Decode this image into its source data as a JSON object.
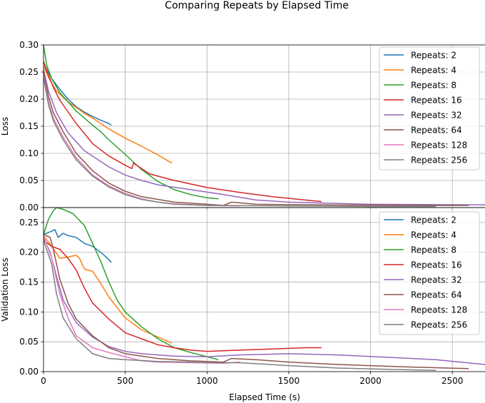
{
  "figure": {
    "title": "Comparing Repeats by Elapsed Time",
    "xlabel": "Elapsed Time (s)"
  },
  "colors": {
    "2": "#1f77b4",
    "4": "#ff7f0e",
    "8": "#2ca02c",
    "16": "#d62728",
    "32": "#9467bd",
    "64": "#8c564b",
    "128": "#e377c2",
    "256": "#7f7f7f"
  },
  "chart_data": [
    {
      "type": "line",
      "title": "",
      "xlabel": "",
      "ylabel": "Loss",
      "xlim": [
        0,
        2700
      ],
      "ylim": [
        0,
        0.3
      ],
      "xticks": [
        0,
        500,
        1000,
        1500,
        2000,
        2500
      ],
      "yticks": [
        0.0,
        0.05,
        0.1,
        0.15,
        0.2,
        0.25,
        0.3
      ],
      "ytick_labels": [
        "0.00",
        "0.05",
        "0.10",
        "0.15",
        "0.20",
        "0.25",
        "0.30"
      ],
      "grid": true,
      "legend_position": "top-right",
      "series": [
        {
          "name": "Repeats: 2",
          "key": "2",
          "points": [
            [
              0,
              0.268
            ],
            [
              20,
              0.255
            ],
            [
              50,
              0.238
            ],
            [
              100,
              0.218
            ],
            [
              150,
              0.2
            ],
            [
              200,
              0.186
            ],
            [
              250,
              0.176
            ],
            [
              300,
              0.168
            ],
            [
              350,
              0.161
            ],
            [
              400,
              0.155
            ],
            [
              415,
              0.152
            ]
          ]
        },
        {
          "name": "Repeats: 4",
          "key": "4",
          "points": [
            [
              0,
              0.262
            ],
            [
              30,
              0.24
            ],
            [
              80,
              0.215
            ],
            [
              150,
              0.195
            ],
            [
              250,
              0.174
            ],
            [
              300,
              0.165
            ],
            [
              400,
              0.145
            ],
            [
              500,
              0.128
            ],
            [
              600,
              0.113
            ],
            [
              700,
              0.097
            ],
            [
              785,
              0.082
            ]
          ]
        },
        {
          "name": "Repeats: 8",
          "key": "8",
          "points": [
            [
              0,
              0.3
            ],
            [
              20,
              0.262
            ],
            [
              50,
              0.238
            ],
            [
              100,
              0.212
            ],
            [
              200,
              0.178
            ],
            [
              300,
              0.152
            ],
            [
              350,
              0.14
            ],
            [
              400,
              0.125
            ],
            [
              500,
              0.098
            ],
            [
              600,
              0.07
            ],
            [
              700,
              0.048
            ],
            [
              800,
              0.033
            ],
            [
              900,
              0.024
            ],
            [
              1000,
              0.018
            ],
            [
              1070,
              0.016
            ]
          ]
        },
        {
          "name": "Repeats: 16",
          "key": "16",
          "points": [
            [
              0,
              0.27
            ],
            [
              20,
              0.252
            ],
            [
              60,
              0.222
            ],
            [
              100,
              0.198
            ],
            [
              200,
              0.155
            ],
            [
              300,
              0.118
            ],
            [
              400,
              0.095
            ],
            [
              500,
              0.078
            ],
            [
              540,
              0.072
            ],
            [
              550,
              0.082
            ],
            [
              650,
              0.062
            ],
            [
              800,
              0.05
            ],
            [
              1000,
              0.037
            ],
            [
              1200,
              0.028
            ],
            [
              1400,
              0.02
            ],
            [
              1600,
              0.014
            ],
            [
              1700,
              0.011
            ]
          ]
        },
        {
          "name": "Repeats: 32",
          "key": "32",
          "points": [
            [
              0,
              0.255
            ],
            [
              30,
              0.215
            ],
            [
              80,
              0.175
            ],
            [
              150,
              0.138
            ],
            [
              250,
              0.105
            ],
            [
              400,
              0.075
            ],
            [
              500,
              0.06
            ],
            [
              600,
              0.05
            ],
            [
              700,
              0.042
            ],
            [
              900,
              0.033
            ],
            [
              1100,
              0.024
            ],
            [
              1300,
              0.014
            ],
            [
              1500,
              0.01
            ],
            [
              2000,
              0.006
            ],
            [
              2700,
              0.005
            ]
          ]
        },
        {
          "name": "Repeats: 64",
          "key": "64",
          "points": [
            [
              0,
              0.25
            ],
            [
              30,
              0.205
            ],
            [
              60,
              0.175
            ],
            [
              120,
              0.14
            ],
            [
              200,
              0.1
            ],
            [
              300,
              0.068
            ],
            [
              400,
              0.045
            ],
            [
              500,
              0.03
            ],
            [
              600,
              0.02
            ],
            [
              800,
              0.01
            ],
            [
              1000,
              0.006
            ],
            [
              1100,
              0.004
            ],
            [
              1150,
              0.01
            ],
            [
              1300,
              0.006
            ],
            [
              1700,
              0.005
            ],
            [
              2200,
              0.004
            ],
            [
              2600,
              0.004
            ]
          ]
        },
        {
          "name": "Repeats: 128",
          "key": "128",
          "points": [
            [
              0,
              0.245
            ],
            [
              30,
              0.195
            ],
            [
              60,
              0.165
            ],
            [
              120,
              0.13
            ],
            [
              200,
              0.092
            ],
            [
              300,
              0.06
            ],
            [
              400,
              0.04
            ],
            [
              500,
              0.026
            ],
            [
              600,
              0.016
            ],
            [
              700,
              0.01
            ],
            [
              800,
              0.007
            ],
            [
              1000,
              0.004
            ],
            [
              1200,
              0.003
            ]
          ]
        },
        {
          "name": "Repeats: 256",
          "key": "256",
          "points": [
            [
              0,
              0.24
            ],
            [
              30,
              0.19
            ],
            [
              60,
              0.16
            ],
            [
              120,
              0.125
            ],
            [
              200,
              0.088
            ],
            [
              300,
              0.058
            ],
            [
              400,
              0.038
            ],
            [
              500,
              0.024
            ],
            [
              600,
              0.015
            ],
            [
              700,
              0.01
            ],
            [
              800,
              0.006
            ],
            [
              1000,
              0.004
            ],
            [
              1500,
              0.003
            ],
            [
              2000,
              0.002
            ],
            [
              2400,
              0.002
            ]
          ]
        }
      ]
    },
    {
      "type": "line",
      "title": "",
      "xlabel": "Elapsed Time (s)",
      "ylabel": "Validation Loss",
      "xlim": [
        0,
        2700
      ],
      "ylim": [
        0,
        0.275
      ],
      "xticks": [
        0,
        500,
        1000,
        1500,
        2000,
        2500
      ],
      "yticks": [
        0.0,
        0.05,
        0.1,
        0.15,
        0.2,
        0.25
      ],
      "ytick_labels": [
        "0.00",
        "0.05",
        "0.10",
        "0.15",
        "0.20",
        "0.25"
      ],
      "grid": true,
      "legend_position": "top-right",
      "series": [
        {
          "name": "Repeats: 2",
          "key": "2",
          "points": [
            [
              0,
              0.23
            ],
            [
              30,
              0.233
            ],
            [
              70,
              0.238
            ],
            [
              90,
              0.225
            ],
            [
              120,
              0.232
            ],
            [
              150,
              0.228
            ],
            [
              200,
              0.225
            ],
            [
              250,
              0.215
            ],
            [
              300,
              0.21
            ],
            [
              350,
              0.2
            ],
            [
              400,
              0.188
            ],
            [
              415,
              0.183
            ]
          ]
        },
        {
          "name": "Repeats: 4",
          "key": "4",
          "points": [
            [
              0,
              0.228
            ],
            [
              50,
              0.21
            ],
            [
              100,
              0.19
            ],
            [
              150,
              0.192
            ],
            [
              200,
              0.195
            ],
            [
              220,
              0.19
            ],
            [
              250,
              0.172
            ],
            [
              300,
              0.168
            ],
            [
              350,
              0.148
            ],
            [
              400,
              0.125
            ],
            [
              500,
              0.09
            ],
            [
              600,
              0.07
            ],
            [
              700,
              0.058
            ],
            [
              785,
              0.048
            ]
          ]
        },
        {
          "name": "Repeats: 8",
          "key": "8",
          "points": [
            [
              0,
              0.23
            ],
            [
              30,
              0.255
            ],
            [
              60,
              0.27
            ],
            [
              80,
              0.275
            ],
            [
              120,
              0.272
            ],
            [
              180,
              0.265
            ],
            [
              250,
              0.245
            ],
            [
              300,
              0.215
            ],
            [
              350,
              0.185
            ],
            [
              400,
              0.15
            ],
            [
              450,
              0.12
            ],
            [
              500,
              0.1
            ],
            [
              600,
              0.075
            ],
            [
              700,
              0.055
            ],
            [
              800,
              0.04
            ],
            [
              900,
              0.032
            ],
            [
              1000,
              0.025
            ],
            [
              1070,
              0.02
            ]
          ]
        },
        {
          "name": "Repeats: 16",
          "key": "16",
          "points": [
            [
              0,
              0.22
            ],
            [
              50,
              0.21
            ],
            [
              100,
              0.205
            ],
            [
              150,
              0.19
            ],
            [
              200,
              0.17
            ],
            [
              250,
              0.14
            ],
            [
              300,
              0.115
            ],
            [
              400,
              0.088
            ],
            [
              500,
              0.065
            ],
            [
              600,
              0.055
            ],
            [
              700,
              0.045
            ],
            [
              800,
              0.04
            ],
            [
              900,
              0.036
            ],
            [
              1000,
              0.034
            ],
            [
              1200,
              0.036
            ],
            [
              1400,
              0.038
            ],
            [
              1600,
              0.04
            ],
            [
              1700,
              0.04
            ]
          ]
        },
        {
          "name": "Repeats: 32",
          "key": "32",
          "points": [
            [
              0,
              0.225
            ],
            [
              40,
              0.2
            ],
            [
              80,
              0.16
            ],
            [
              120,
              0.12
            ],
            [
              200,
              0.082
            ],
            [
              300,
              0.058
            ],
            [
              400,
              0.042
            ],
            [
              500,
              0.034
            ],
            [
              600,
              0.03
            ],
            [
              800,
              0.026
            ],
            [
              1000,
              0.025
            ],
            [
              1200,
              0.028
            ],
            [
              1500,
              0.03
            ],
            [
              1800,
              0.028
            ],
            [
              2100,
              0.024
            ],
            [
              2400,
              0.02
            ],
            [
              2700,
              0.012
            ]
          ]
        },
        {
          "name": "Repeats: 64",
          "key": "64",
          "points": [
            [
              0,
              0.23
            ],
            [
              40,
              0.225
            ],
            [
              60,
              0.205
            ],
            [
              100,
              0.155
            ],
            [
              150,
              0.115
            ],
            [
              200,
              0.088
            ],
            [
              300,
              0.06
            ],
            [
              400,
              0.04
            ],
            [
              500,
              0.03
            ],
            [
              700,
              0.022
            ],
            [
              900,
              0.018
            ],
            [
              1100,
              0.016
            ],
            [
              1150,
              0.022
            ],
            [
              1300,
              0.02
            ],
            [
              1500,
              0.016
            ],
            [
              1800,
              0.012
            ],
            [
              2200,
              0.008
            ],
            [
              2600,
              0.005
            ]
          ]
        },
        {
          "name": "Repeats: 128",
          "key": "128",
          "points": [
            [
              0,
              0.228
            ],
            [
              50,
              0.19
            ],
            [
              100,
              0.13
            ],
            [
              150,
              0.09
            ],
            [
              200,
              0.06
            ],
            [
              300,
              0.04
            ],
            [
              400,
              0.032
            ],
            [
              500,
              0.025
            ],
            [
              600,
              0.018
            ],
            [
              700,
              0.016
            ],
            [
              900,
              0.015
            ],
            [
              1100,
              0.014
            ],
            [
              1200,
              0.016
            ]
          ]
        },
        {
          "name": "Repeats: 256",
          "key": "256",
          "points": [
            [
              0,
              0.22
            ],
            [
              50,
              0.18
            ],
            [
              80,
              0.13
            ],
            [
              120,
              0.09
            ],
            [
              200,
              0.055
            ],
            [
              300,
              0.03
            ],
            [
              400,
              0.022
            ],
            [
              500,
              0.02
            ],
            [
              700,
              0.017
            ],
            [
              900,
              0.016
            ],
            [
              1000,
              0.015
            ],
            [
              1200,
              0.015
            ],
            [
              1500,
              0.01
            ],
            [
              1800,
              0.006
            ],
            [
              2100,
              0.004
            ],
            [
              2400,
              0.002
            ]
          ]
        }
      ]
    }
  ]
}
